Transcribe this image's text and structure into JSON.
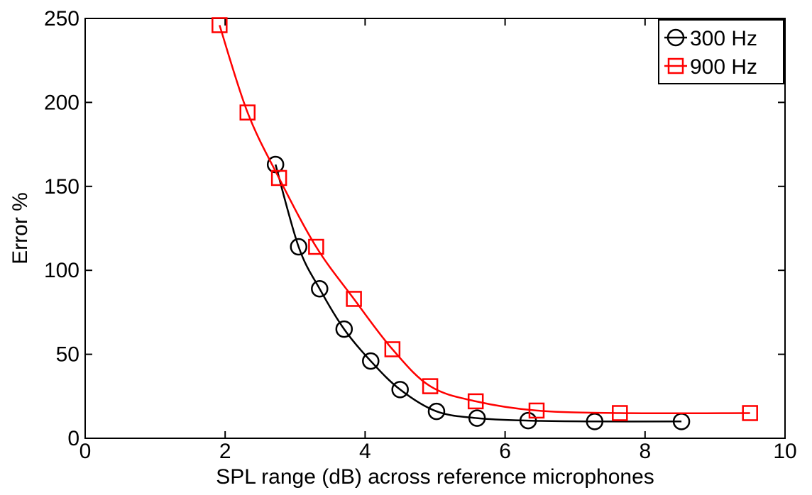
{
  "chart_data": {
    "type": "line",
    "xlabel": "SPL range (dB) across reference microphones",
    "ylabel": "Error %",
    "xlim": [
      0,
      10
    ],
    "ylim": [
      0,
      250
    ],
    "x_ticks": [
      0,
      2,
      4,
      6,
      8,
      10
    ],
    "y_ticks": [
      0,
      50,
      100,
      150,
      200,
      250
    ],
    "grid": false,
    "legend_position": "top-right",
    "series": [
      {
        "name": "300 Hz",
        "marker": "circle",
        "color": "#000000",
        "x": [
          2.72,
          3.05,
          3.35,
          3.7,
          4.08,
          4.5,
          5.02,
          5.6,
          6.33,
          7.28,
          8.52
        ],
        "y": [
          163,
          114,
          89,
          65,
          46,
          29,
          16,
          12,
          10.5,
          10,
          10
        ]
      },
      {
        "name": "900 Hz",
        "marker": "square",
        "color": "#ff0000",
        "x": [
          1.92,
          2.32,
          2.77,
          3.3,
          3.84,
          4.39,
          4.93,
          5.58,
          6.45,
          7.64,
          9.5
        ],
        "y": [
          246,
          194,
          155,
          114,
          83,
          53,
          31,
          22,
          16.5,
          15,
          15
        ]
      }
    ]
  }
}
